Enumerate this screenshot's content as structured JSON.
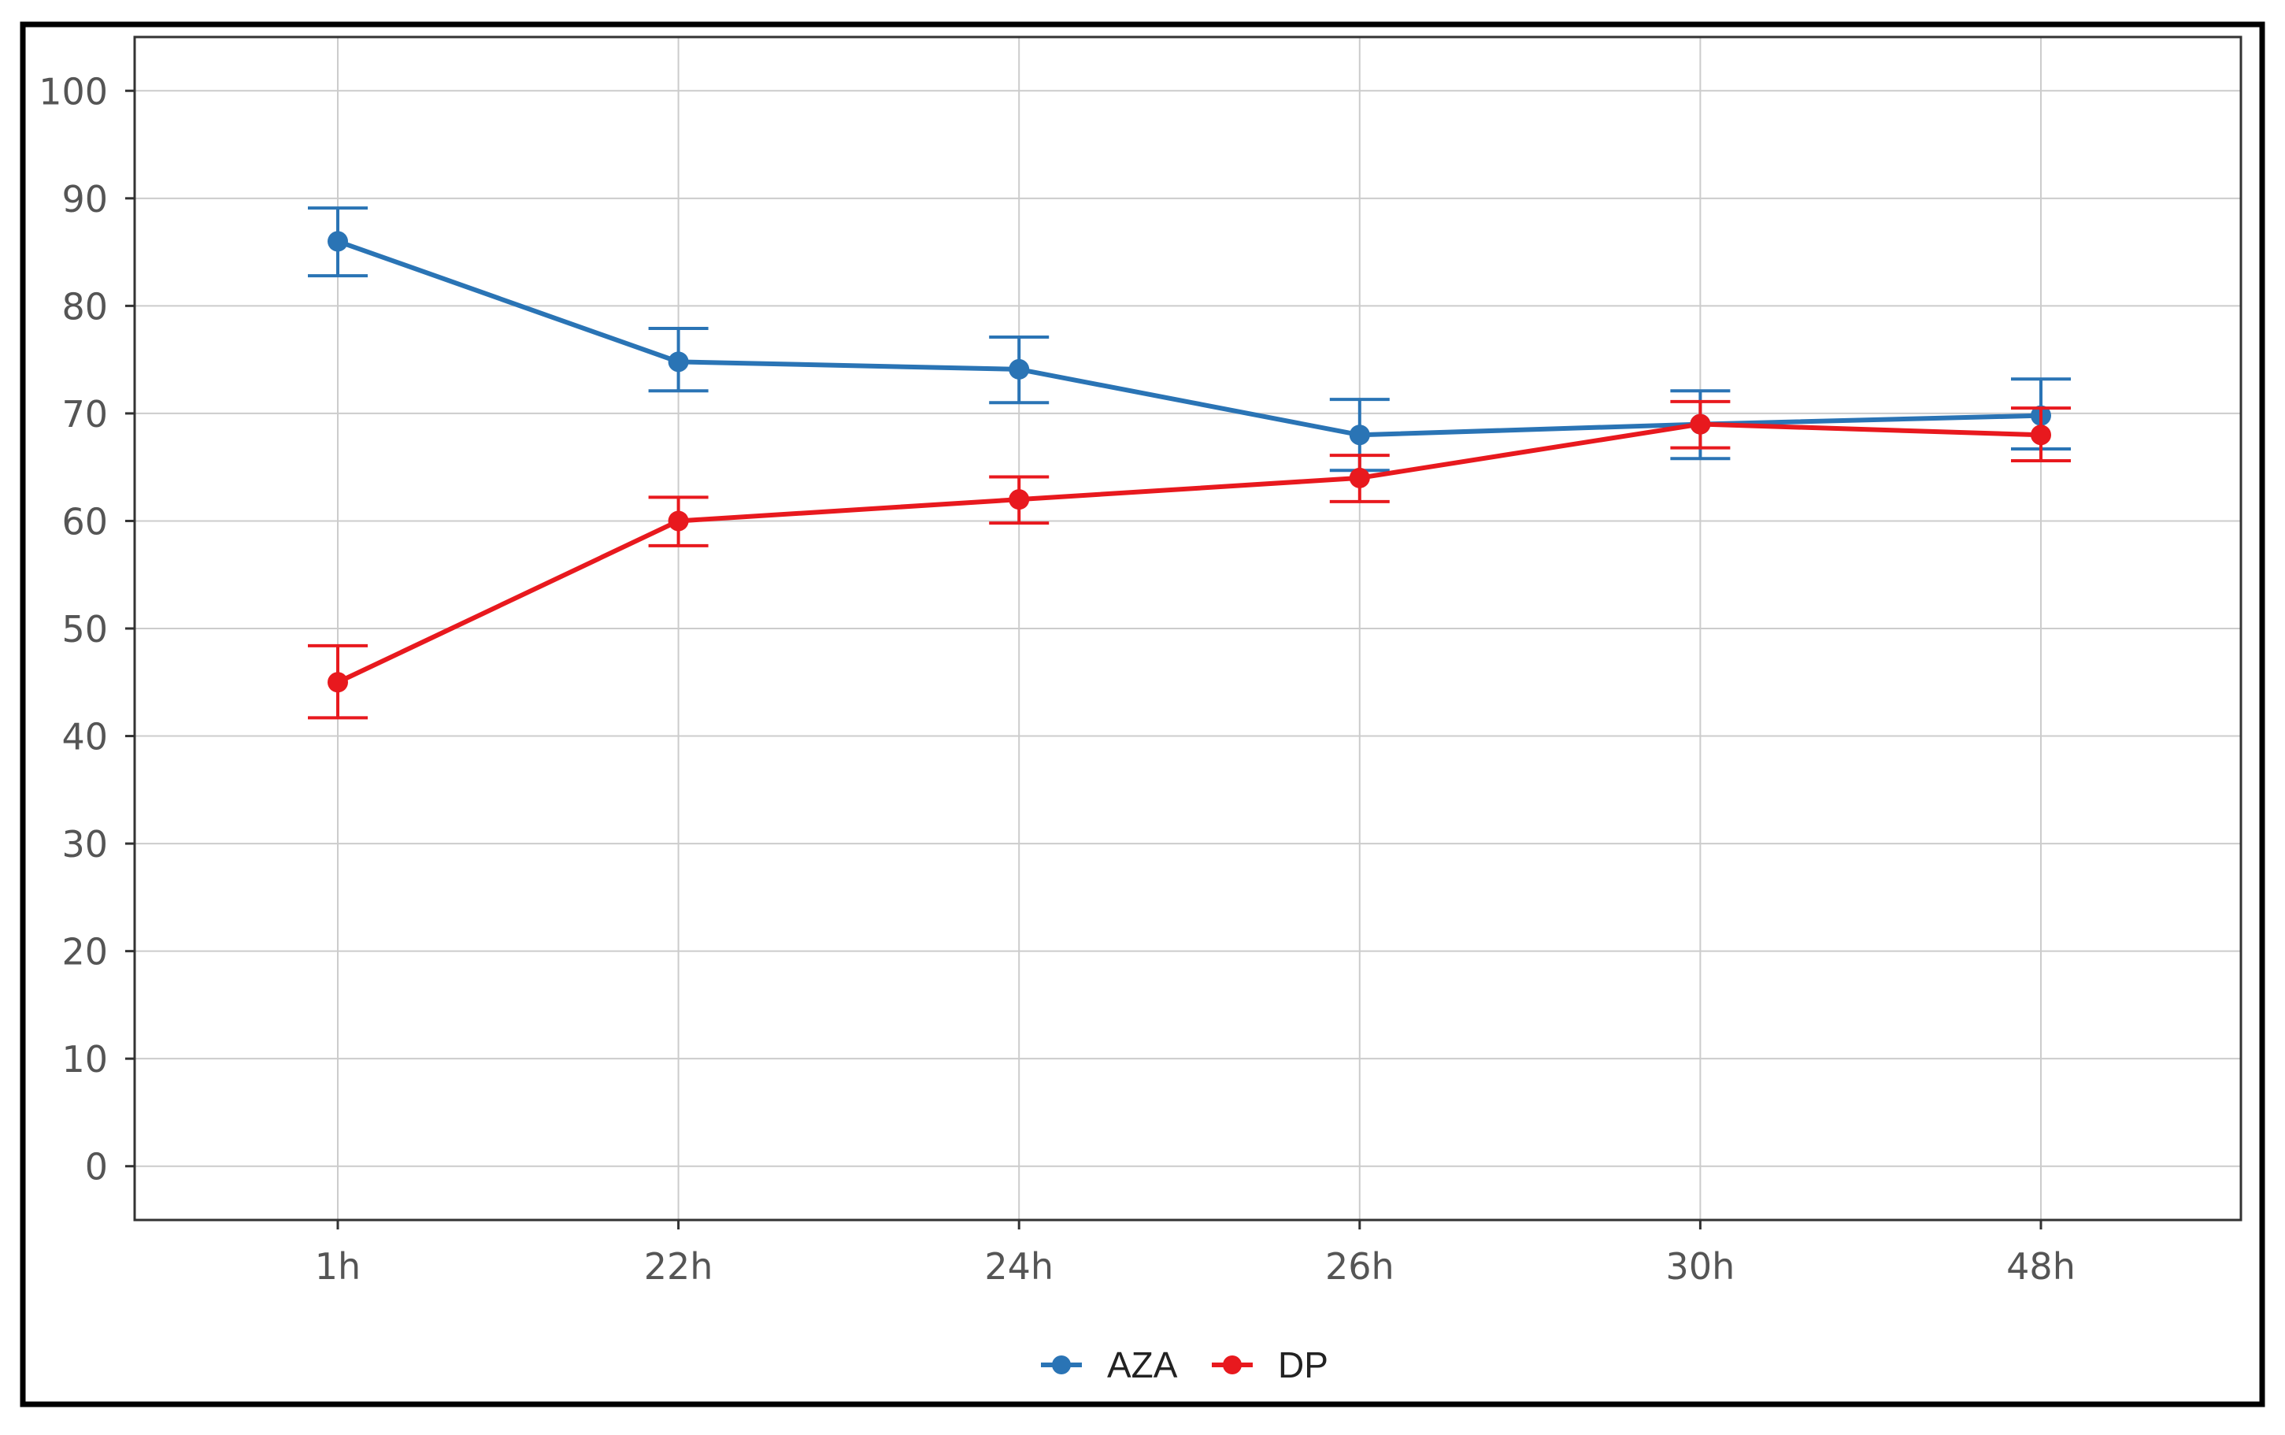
{
  "chart_data": {
    "type": "line",
    "title": "",
    "xlabel": "",
    "ylabel": "",
    "categories": [
      "1h",
      "22h",
      "24h",
      "26h",
      "30h",
      "48h"
    ],
    "ylim": [
      -5,
      105
    ],
    "yticks": [
      0,
      10,
      20,
      30,
      40,
      50,
      60,
      70,
      80,
      90,
      100
    ],
    "grid": true,
    "legend_position": "bottom-center",
    "series": [
      {
        "name": "AZA",
        "color": "#2a74b5",
        "values": [
          86,
          74.8,
          74.1,
          68,
          69,
          69.8
        ],
        "error_low": [
          82.8,
          72.1,
          71,
          64.7,
          65.8,
          66.7
        ],
        "error_high": [
          89.1,
          77.9,
          77.1,
          71.3,
          72.1,
          73.2
        ]
      },
      {
        "name": "DP",
        "color": "#e8191e",
        "values": [
          45,
          60,
          62,
          64,
          69,
          68
        ],
        "error_low": [
          41.7,
          57.7,
          59.8,
          61.8,
          66.8,
          65.6
        ],
        "error_high": [
          48.4,
          62.2,
          64.1,
          66.1,
          71.1,
          70.5
        ]
      }
    ]
  }
}
